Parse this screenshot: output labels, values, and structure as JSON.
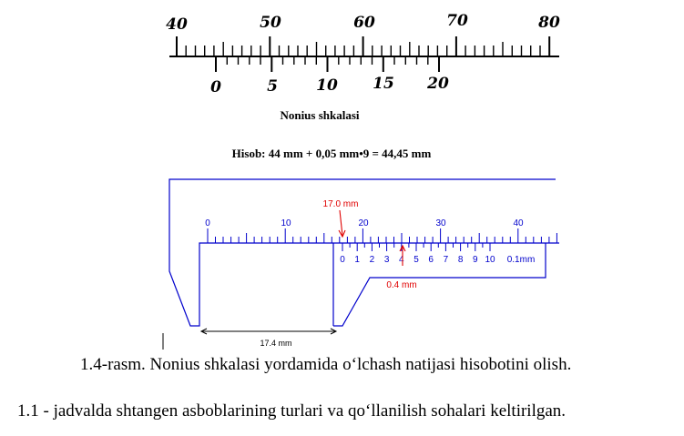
{
  "top_scale": {
    "main_labels": [
      "40",
      "50",
      "60",
      "70",
      "80"
    ],
    "vernier_labels": [
      "0",
      "5",
      "10",
      "15",
      "20"
    ],
    "title": "Nonius shkalasi",
    "formula": "Hisob: 44 mm + 0,05 mm•9 = 44,45 mm"
  },
  "caliper": {
    "main_labels": [
      "0",
      "10",
      "20",
      "30",
      "40"
    ],
    "vernier_labels": [
      "0",
      "1",
      "2",
      "3",
      "4",
      "5",
      "6",
      "7",
      "8",
      "9",
      "10"
    ],
    "vernier_unit": "0.1mm",
    "reading_main": "17.0 mm",
    "reading_vernier": "0.4 mm",
    "dimension": "17.4 mm",
    "colors": {
      "scale": "#0000cc",
      "marker": "#e00000"
    }
  },
  "figure_caption": "1.4-rasm. Nonius shkalasi yordamida o‘lchash natijasi hisobotini olish.",
  "paragraph": "1.1 - jadvalda shtangen asboblarining turlari va qo‘llanilish sohalari keltirilgan."
}
